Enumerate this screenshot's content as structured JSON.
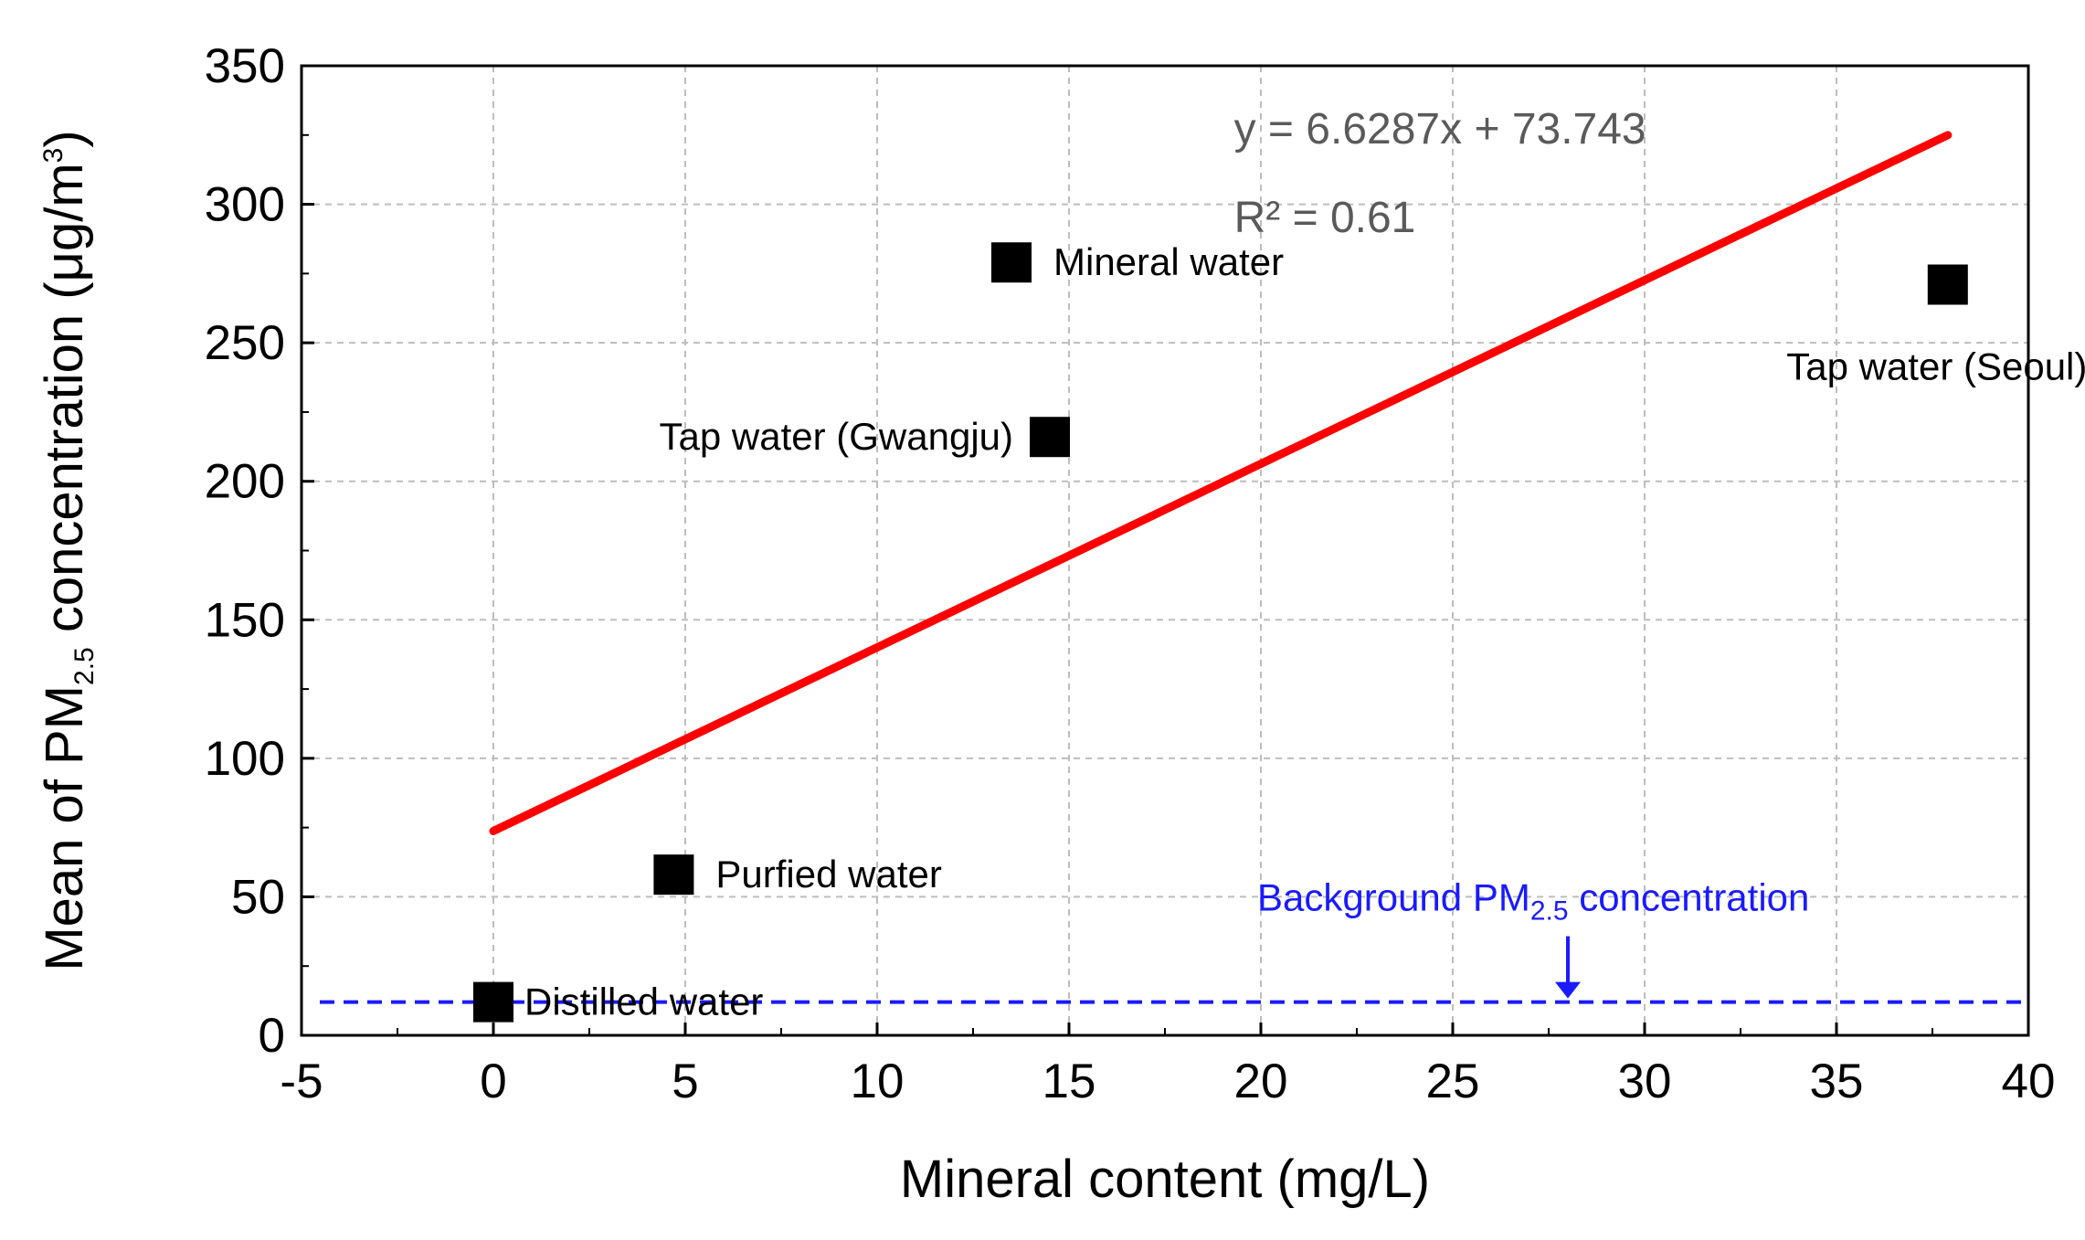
{
  "chart_data": {
    "type": "scatter",
    "xlabel": "Mineral content (mg/L)",
    "ylabel": {
      "prefix": "Mean of PM",
      "sub": "2.5",
      "middle": " concentration (μg/m",
      "sup": "3",
      "suffix": ")"
    },
    "xlim": [
      -5,
      40
    ],
    "ylim": [
      0,
      350
    ],
    "xticks": [
      -5,
      0,
      5,
      10,
      15,
      20,
      25,
      30,
      35,
      40
    ],
    "yticks": [
      0,
      50,
      100,
      150,
      200,
      250,
      300,
      350
    ],
    "grid": true,
    "points": [
      {
        "name": "Distilled water",
        "x": 0,
        "y": 12
      },
      {
        "name": "Purfied water",
        "x": 4.7,
        "y": 58
      },
      {
        "name": "Mineral water",
        "x": 13.5,
        "y": 279
      },
      {
        "name": "Tap water (Gwangju)",
        "x": 14.5,
        "y": 216
      },
      {
        "name": "Tap water (Seoul)",
        "x": 37.9,
        "y": 271
      }
    ],
    "fit": {
      "slope": 6.6287,
      "intercept": 73.743,
      "x_range": [
        0,
        37.9
      ],
      "equation": "y = 6.6287x  + 73.743",
      "r2": "R² = 0.61",
      "color": "#ff0000"
    },
    "background": {
      "y": 12,
      "arrow_x": 28,
      "label_prefix": "Background PM",
      "label_sub": "2.5",
      "label_suffix": " concentration",
      "color": "#1a1aff"
    }
  }
}
